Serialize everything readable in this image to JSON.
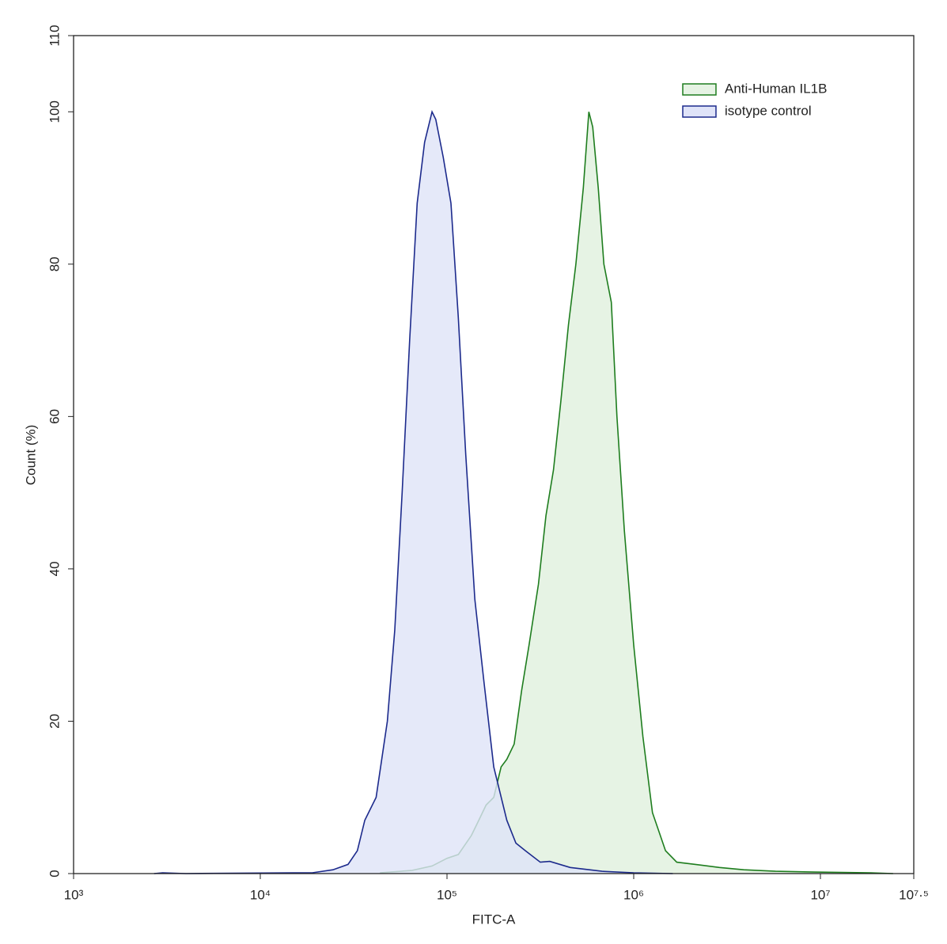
{
  "chart_data": {
    "type": "histogram-overlay",
    "x_label": "FITC-A",
    "y_label": "Count (%)",
    "x_log_scale": true,
    "xlim": [
      1000,
      31622776.6
    ],
    "xticks": [
      {
        "value": 1000,
        "label": "10³"
      },
      {
        "value": 10000,
        "label": "10⁴"
      },
      {
        "value": 100000,
        "label": "10⁵"
      },
      {
        "value": 1000000,
        "label": "10⁶"
      },
      {
        "value": 10000000,
        "label": "10⁷"
      },
      {
        "value": 31622776.6,
        "label": "10⁷·⁵"
      }
    ],
    "ylim": [
      0,
      110
    ],
    "yticks": [
      0,
      20,
      40,
      60,
      80,
      100,
      110
    ],
    "legend": "upper right",
    "series": [
      {
        "name": "Anti-Human IL1B",
        "color": "#1e7d1e",
        "fill": "#e6f3e4",
        "x": [
          43700,
          64600,
          83200,
          100000,
          115000,
          135000,
          148000,
          162000,
          178000,
          195000,
          209000,
          229000,
          251000,
          275000,
          309000,
          339000,
          372000,
          407000,
          447000,
          490000,
          537000,
          575000,
          603000,
          646000,
          692000,
          759000,
          813000,
          891000,
          1000000,
          1120000,
          1260000,
          1480000,
          1700000,
          2140000,
          2880000,
          3890000,
          5750000,
          9330000,
          18600000,
          24500000
        ],
        "values": [
          0.1,
          0.4,
          1,
          2,
          2.5,
          5,
          7,
          9,
          10,
          14,
          15,
          17,
          24,
          30,
          38,
          47,
          53,
          62,
          72,
          80,
          90,
          100,
          98,
          90,
          80,
          75,
          60,
          45,
          30,
          18,
          8,
          3,
          1.5,
          1.2,
          0.8,
          0.5,
          0.3,
          0.2,
          0.1,
          0
        ]
      },
      {
        "name": "isotype control",
        "color": "#1c2a8c",
        "fill": "#dfe3f8",
        "x": [
          2700,
          3000,
          4000,
          15000,
          19000,
          24500,
          29500,
          33100,
          36300,
          41700,
          47900,
          52500,
          57500,
          63100,
          69200,
          75900,
          83200,
          87100,
          95500,
          105000,
          115000,
          126000,
          141000,
          158000,
          178000,
          209000,
          234000,
          263000,
          316000,
          355000,
          457000,
          676000,
          1000000,
          1620000
        ],
        "values": [
          0,
          0.1,
          0,
          0.1,
          0.1,
          0.5,
          1.2,
          3,
          7,
          10,
          20,
          32,
          50,
          70,
          88,
          96,
          100,
          99,
          94,
          88,
          73,
          55,
          36,
          25,
          14,
          7,
          4,
          3,
          1.5,
          1.6,
          0.8,
          0.3,
          0.1,
          0
        ]
      }
    ]
  }
}
